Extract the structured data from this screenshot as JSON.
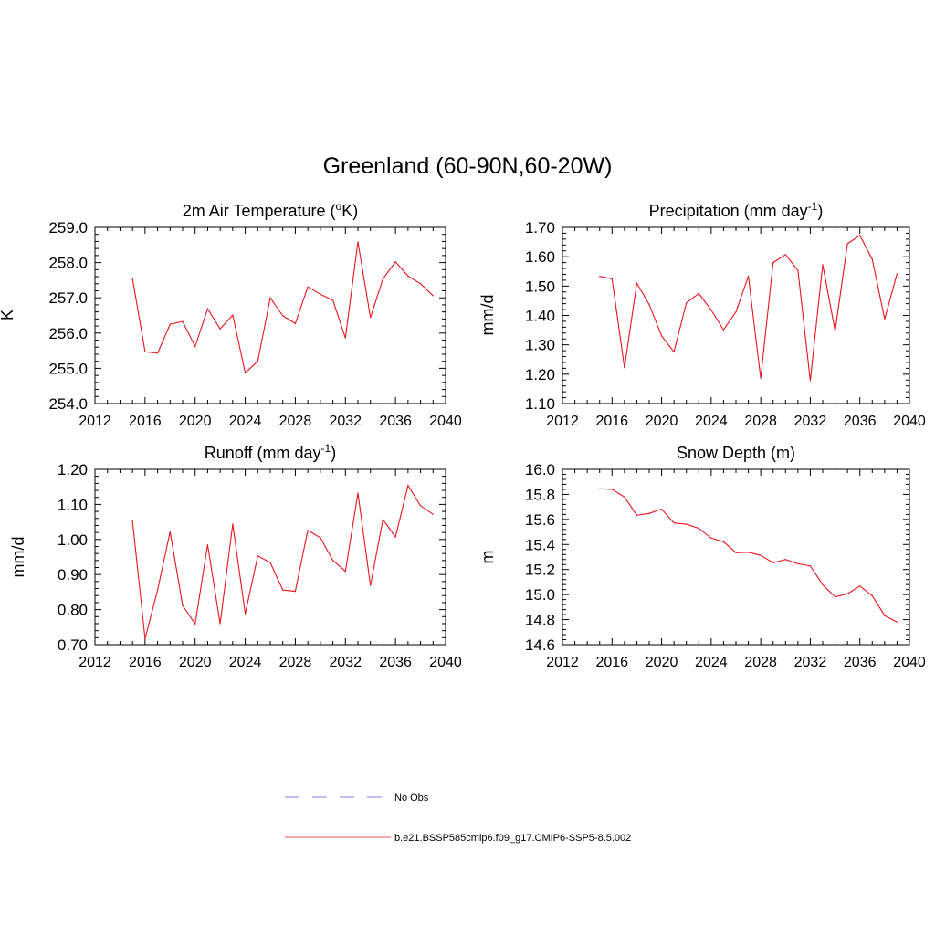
{
  "title": "Greenland (60-90N,60-20W)",
  "colors": {
    "model_line": "#e8141c",
    "obs_line": "#9a9ae6",
    "axis": "#000000"
  },
  "legend": [
    {
      "label": "No Obs",
      "style": "dashed",
      "color": "#9a9ae6"
    },
    {
      "label": "b.e21.BSSP585cmip6.f09_g17.CMIP6-SSP5-8.5.002",
      "style": "solid",
      "color": "#e8141c"
    }
  ],
  "chart_data": [
    {
      "type": "line",
      "title_main": "2m Air Temperature (",
      "title_sup": "o",
      "title_tail": "K)",
      "ylabel": "K",
      "xlim": [
        2012,
        2040
      ],
      "ylim": [
        254.0,
        259.0
      ],
      "xticks": [
        2012,
        2016,
        2020,
        2024,
        2028,
        2032,
        2036,
        2040
      ],
      "yticks": [
        "254.0",
        "255.0",
        "256.0",
        "257.0",
        "258.0",
        "259.0"
      ],
      "x": [
        2015,
        2016,
        2017,
        2018,
        2019,
        2020,
        2021,
        2022,
        2023,
        2024,
        2025,
        2026,
        2027,
        2028,
        2029,
        2030,
        2031,
        2032,
        2033,
        2034,
        2035,
        2036,
        2037,
        2038,
        2039
      ],
      "series": [
        {
          "name": "b.e21.BSSP585cmip6.f09_g17.CMIP6-SSP5-8.5.002",
          "values": [
            257.55,
            255.47,
            255.43,
            256.25,
            256.33,
            255.62,
            256.69,
            256.12,
            256.51,
            254.87,
            255.2,
            257.0,
            256.49,
            256.27,
            257.31,
            257.1,
            256.93,
            255.86,
            258.59,
            256.44,
            257.54,
            258.02,
            257.62,
            257.4,
            257.06
          ]
        }
      ]
    },
    {
      "type": "line",
      "title_main": "Precipitation (mm day",
      "title_sup": "-1",
      "title_tail": ")",
      "ylabel": "mm/d",
      "xlim": [
        2012,
        2040
      ],
      "ylim": [
        1.1,
        1.7
      ],
      "xticks": [
        2012,
        2016,
        2020,
        2024,
        2028,
        2032,
        2036,
        2040
      ],
      "yticks": [
        "1.10",
        "1.20",
        "1.30",
        "1.40",
        "1.50",
        "1.60",
        "1.70"
      ],
      "x": [
        2015,
        2016,
        2017,
        2018,
        2019,
        2020,
        2021,
        2022,
        2023,
        2024,
        2025,
        2026,
        2027,
        2028,
        2029,
        2030,
        2031,
        2032,
        2033,
        2034,
        2035,
        2036,
        2037,
        2038,
        2039
      ],
      "series": [
        {
          "name": "b.e21.BSSP585cmip6.f09_g17.CMIP6-SSP5-8.5.002",
          "values": [
            1.533,
            1.525,
            1.222,
            1.51,
            1.437,
            1.33,
            1.276,
            1.443,
            1.475,
            1.418,
            1.351,
            1.412,
            1.534,
            1.186,
            1.58,
            1.607,
            1.553,
            1.178,
            1.573,
            1.347,
            1.644,
            1.673,
            1.591,
            1.388,
            1.542
          ]
        }
      ]
    },
    {
      "type": "line",
      "title_main": "Runoff (mm day",
      "title_sup": "-1",
      "title_tail": ")",
      "ylabel": "mm/d",
      "xlim": [
        2012,
        2040
      ],
      "ylim": [
        0.7,
        1.2
      ],
      "xticks": [
        2012,
        2016,
        2020,
        2024,
        2028,
        2032,
        2036,
        2040
      ],
      "yticks": [
        "0.70",
        "0.80",
        "0.90",
        "1.00",
        "1.10",
        "1.20"
      ],
      "x": [
        2015,
        2016,
        2017,
        2018,
        2019,
        2020,
        2021,
        2022,
        2023,
        2024,
        2025,
        2026,
        2027,
        2028,
        2029,
        2030,
        2031,
        2032,
        2033,
        2034,
        2035,
        2036,
        2037,
        2038,
        2039
      ],
      "series": [
        {
          "name": "b.e21.BSSP585cmip6.f09_g17.CMIP6-SSP5-8.5.002",
          "values": [
            1.053,
            0.717,
            0.856,
            1.022,
            0.812,
            0.759,
            0.985,
            0.76,
            1.044,
            0.788,
            0.953,
            0.934,
            0.856,
            0.852,
            1.026,
            1.005,
            0.94,
            0.909,
            1.132,
            0.869,
            1.057,
            1.007,
            1.154,
            1.096,
            1.072
          ]
        }
      ]
    },
    {
      "type": "line",
      "title_main": "Snow Depth (m)",
      "title_sup": "",
      "title_tail": "",
      "ylabel": "m",
      "xlim": [
        2012,
        2040
      ],
      "ylim": [
        14.6,
        16.0
      ],
      "xticks": [
        2012,
        2016,
        2020,
        2024,
        2028,
        2032,
        2036,
        2040
      ],
      "yticks": [
        "14.6",
        "14.8",
        "15.0",
        "15.2",
        "15.4",
        "15.6",
        "15.8",
        "16.0"
      ],
      "x": [
        2015,
        2016,
        2017,
        2018,
        2019,
        2020,
        2021,
        2022,
        2023,
        2024,
        2025,
        2026,
        2027,
        2028,
        2029,
        2030,
        2031,
        2032,
        2033,
        2034,
        2035,
        2036,
        2037,
        2038,
        2039
      ],
      "series": [
        {
          "name": "b.e21.BSSP585cmip6.f09_g17.CMIP6-SSP5-8.5.002",
          "values": [
            15.845,
            15.84,
            15.779,
            15.633,
            15.648,
            15.683,
            15.572,
            15.562,
            15.529,
            15.451,
            15.422,
            15.334,
            15.338,
            15.313,
            15.254,
            15.28,
            15.246,
            15.229,
            15.078,
            14.982,
            15.006,
            15.068,
            14.99,
            14.832,
            14.781
          ]
        }
      ]
    }
  ]
}
